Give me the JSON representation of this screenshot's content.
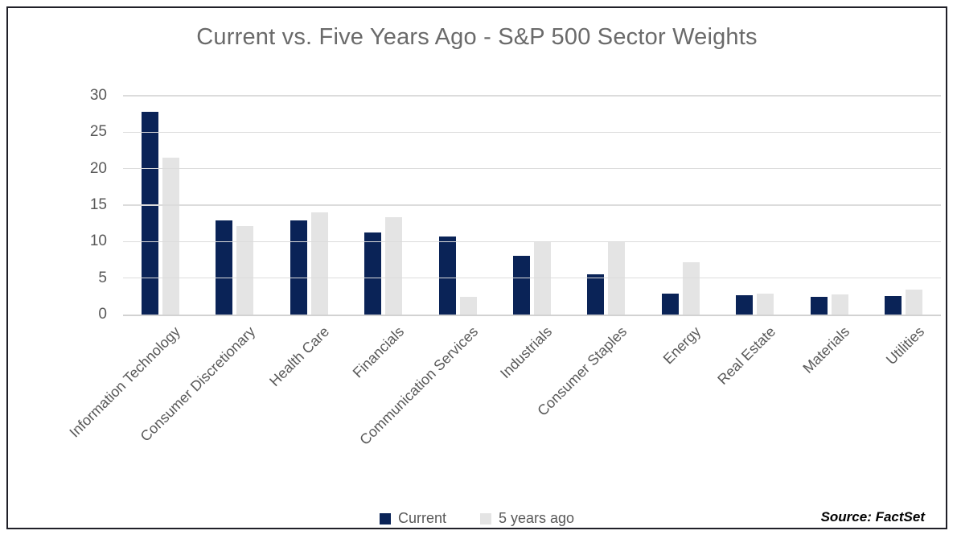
{
  "title": "Current vs. Five Years Ago - S&P 500 Sector Weights",
  "source_note": "Source: FactSet",
  "colors": {
    "current_bar": "#0a2357",
    "five_years_ago_bar": "#e4e4e4",
    "gridline": "#dcdcdc",
    "axis_line": "#d2d2d2",
    "title_text": "#6a6a6a",
    "axis_text": "#595959",
    "frame_border": "#202028"
  },
  "chart_data": {
    "type": "bar",
    "title": "Current vs. Five Years Ago - S&P 500 Sector Weights",
    "categories": [
      "Information Technology",
      "Consumer Discretionary",
      "Health Care",
      "Financials",
      "Communication Services",
      "Industrials",
      "Consumer Staples",
      "Energy",
      "Real Estate",
      "Materials",
      "Utilities"
    ],
    "series": [
      {
        "name": "Current",
        "color": "#0a2357",
        "values": [
          27.8,
          12.9,
          12.9,
          11.3,
          10.7,
          8.0,
          5.5,
          2.9,
          2.6,
          2.4,
          2.5
        ]
      },
      {
        "name": "5 years ago",
        "color": "#e4e4e4",
        "values": [
          21.5,
          12.1,
          14.0,
          13.3,
          2.4,
          10.0,
          9.9,
          7.2,
          2.9,
          2.8,
          3.4
        ]
      }
    ],
    "xlabel": "",
    "ylabel": "",
    "ylim": [
      0,
      30
    ],
    "yticks": [
      0,
      5,
      10,
      15,
      20,
      25,
      30
    ],
    "grid": true,
    "legend_position": "bottom-center",
    "x_tick_rotation_deg": 45,
    "annotation": "Source: FactSet"
  }
}
